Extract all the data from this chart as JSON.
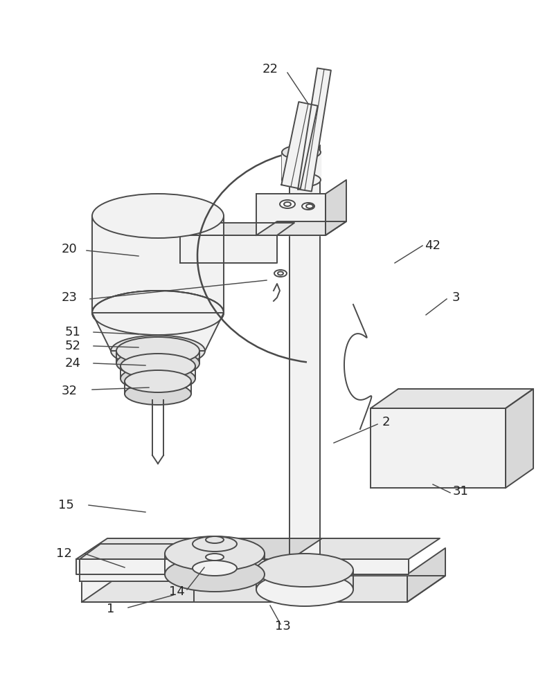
{
  "line_color": "#4a4a4a",
  "line_width": 1.4,
  "fill_light": "#f2f2f2",
  "fill_mid": "#e5e5e5",
  "fill_dark": "#d8d8d8",
  "fill_top": "#eeeeee"
}
